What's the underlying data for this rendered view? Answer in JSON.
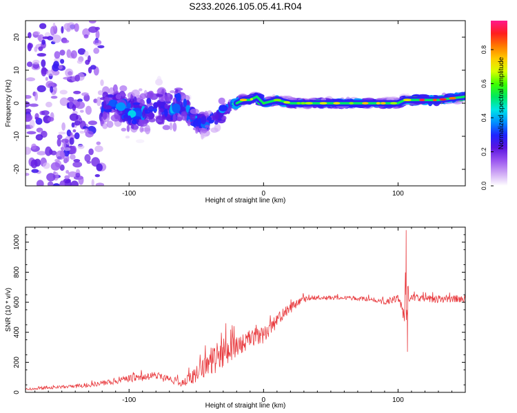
{
  "title": "S233.2026.105.05.41.R04",
  "chart_data": [
    {
      "type": "heatmap",
      "name": "spectrogram",
      "xlabel": "Height of straight line (km)",
      "ylabel": "Frequency (Hz)",
      "xlim": [
        -177,
        150
      ],
      "ylim": [
        -25,
        25
      ],
      "xticks": [
        -100,
        0,
        100
      ],
      "yticks": [
        -20,
        -10,
        0,
        10,
        20
      ],
      "colorbar": {
        "label": "Normalized spectral amplitude",
        "range": [
          0.0,
          0.97
        ],
        "ticks": [
          0.0,
          0.2,
          0.4,
          0.6,
          0.8
        ],
        "colors": [
          "#ffffff",
          "#cfa8f5",
          "#9a55f0",
          "#5a14e0",
          "#1e24ff",
          "#0090ff",
          "#00e6e6",
          "#00e860",
          "#3cff00",
          "#d8ff00",
          "#ffcc00",
          "#ff7a00",
          "#ff1e1e",
          "#ff1a8c"
        ]
      },
      "ridge": {
        "x": [
          -177,
          -160,
          -140,
          -130,
          -120,
          -110,
          -100,
          -90,
          -80,
          -70,
          -62,
          -55,
          -50,
          -45,
          -40,
          -35,
          -30,
          -25,
          -20,
          -15,
          -10,
          -5,
          0,
          10,
          20,
          40,
          60,
          80,
          100,
          105,
          110,
          130,
          150
        ],
        "y": [
          2,
          0,
          0,
          1,
          -1,
          0,
          -3,
          -3,
          -1,
          -2,
          0,
          -3,
          -5,
          -6,
          -6,
          -4,
          -2,
          -1,
          0,
          1,
          1,
          2,
          0,
          1,
          0,
          0,
          0,
          0,
          0,
          1,
          1,
          1,
          2
        ],
        "amplitude": [
          0.15,
          0.2,
          0.25,
          0.3,
          0.35,
          0.38,
          0.45,
          0.45,
          0.4,
          0.42,
          0.45,
          0.5,
          0.45,
          0.4,
          0.4,
          0.45,
          0.5,
          0.55,
          0.62,
          0.65,
          0.6,
          0.6,
          0.55,
          0.6,
          0.62,
          0.6,
          0.6,
          0.62,
          0.6,
          0.62,
          0.85,
          0.8,
          0.75
        ]
      }
    },
    {
      "type": "line",
      "name": "snr",
      "xlabel": "Height of straight line (km)",
      "ylabel": "SNR (10 * v/v)",
      "xlim": [
        -177,
        150
      ],
      "ylim": [
        0,
        1100
      ],
      "xticks": [
        -100,
        0,
        100
      ],
      "yticks": [
        0,
        200,
        400,
        600,
        800,
        1000
      ],
      "color": "#e8383c",
      "envelope_x": [
        -177,
        -160,
        -140,
        -120,
        -100,
        -80,
        -70,
        -60,
        -50,
        -40,
        -30,
        -20,
        -10,
        0,
        10,
        20,
        30,
        40,
        60,
        80,
        90,
        100,
        103,
        106,
        108,
        110,
        120,
        140,
        150
      ],
      "envelope_y": [
        20,
        30,
        40,
        60,
        90,
        110,
        90,
        60,
        120,
        200,
        260,
        300,
        360,
        380,
        480,
        560,
        620,
        630,
        630,
        620,
        600,
        630,
        560,
        620,
        620,
        630,
        620,
        620,
        620
      ],
      "noise_amplitude": [
        10,
        15,
        20,
        30,
        40,
        50,
        45,
        40,
        100,
        150,
        180,
        120,
        100,
        90,
        80,
        60,
        40,
        25,
        20,
        25,
        30,
        40,
        60,
        400,
        50,
        40,
        40,
        40,
        45
      ],
      "peaks": [
        {
          "x": 106,
          "y": 1080
        },
        {
          "x": 107,
          "y": 270
        },
        {
          "x": -28,
          "y": 460
        }
      ]
    }
  ]
}
